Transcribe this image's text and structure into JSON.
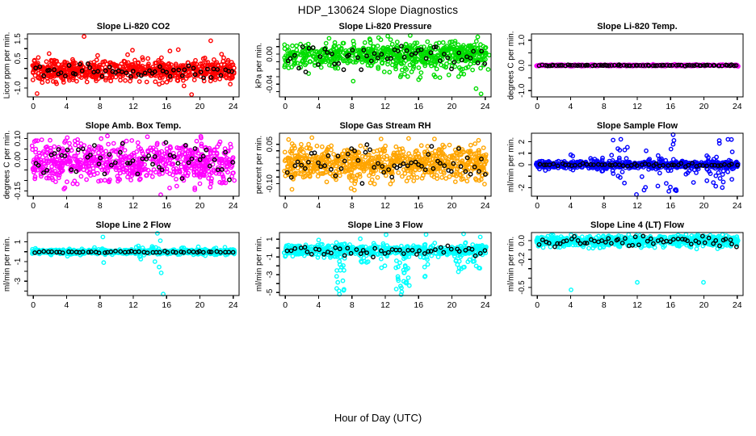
{
  "header": {
    "title": "HDP_130624  Slope Diagnostics"
  },
  "footer": {
    "xlabel": "Hour of Day (UTC)"
  },
  "marker": {
    "radius": 2.2,
    "stroke_width": 1.4,
    "overlay_color": "#000000"
  },
  "chart_data": [
    {
      "type": "scatter",
      "title": "Slope Li-820 CO2",
      "ylabel": "Licor ppm per min.",
      "color": "#FF0000",
      "seed": 11,
      "xlim": [
        -0.7,
        24.7
      ],
      "ylim": [
        -1.45,
        1.75
      ],
      "xticks": [
        0,
        4,
        8,
        12,
        16,
        20,
        24
      ],
      "yticks": [
        -1,
        -0.5,
        0,
        0.5,
        1,
        1.5
      ],
      "ytick_labels": {
        "1.5": "1.5",
        "0.5": "0.5",
        "-1": "-1.0"
      },
      "band": {
        "n": 680,
        "center": -0.12,
        "sd": 0.26,
        "ymin": -1.02,
        "ymax": 0.9
      },
      "clusters": [],
      "outliers": [
        [
          0.45,
          -1.28
        ],
        [
          6.1,
          1.62
        ],
        [
          19.0,
          -1.33
        ],
        [
          21.3,
          1.4
        ],
        [
          11.9,
          0.92
        ],
        [
          13.1,
          0.55
        ],
        [
          16.4,
          0.88
        ],
        [
          22.6,
          0.72
        ],
        [
          17.4,
          0.95
        ],
        [
          0.6,
          0.55
        ]
      ],
      "overlay": {
        "n": 55,
        "center": -0.12,
        "sd": 0.2,
        "ymin": -0.6,
        "ymax": 0.5
      }
    },
    {
      "type": "scatter",
      "title": "Slope Li-820 Pressure",
      "ylabel": "kPa per min.",
      "color": "#00DD00",
      "seed": 22,
      "xlim": [
        -0.7,
        24.7
      ],
      "ylim": [
        -0.057,
        0.027
      ],
      "xticks": [
        0,
        4,
        8,
        12,
        16,
        20,
        24
      ],
      "yticks": [
        0.02,
        0.01,
        0,
        -0.01,
        -0.02,
        -0.03,
        -0.04,
        -0.05
      ],
      "ytick_labels": {
        "0": "0.00",
        "-0.04": "-0.04"
      },
      "band": {
        "n": 620,
        "center": -0.001,
        "sd": 0.008,
        "ymin": -0.032,
        "ymax": 0.022
      },
      "clusters": [
        {
          "x": 18,
          "xs": 6.5,
          "n": 50,
          "ymin": -0.033,
          "ymax": 0.02
        }
      ],
      "outliers": [
        [
          23.5,
          -0.053
        ],
        [
          22.9,
          -0.046
        ],
        [
          8.15,
          -0.036
        ],
        [
          16.0,
          -0.034
        ],
        [
          20.8,
          -0.03
        ],
        [
          12.3,
          0.024
        ],
        [
          15.0,
          0.025
        ],
        [
          23.1,
          0.023
        ],
        [
          11.2,
          0.022
        ],
        [
          16.2,
          -0.031
        ],
        [
          13.9,
          -0.028
        ]
      ],
      "overlay": {
        "n": 55,
        "center": -0.002,
        "sd": 0.008,
        "ymin": -0.042,
        "ymax": 0.012
      }
    },
    {
      "type": "scatter",
      "title": "Slope Li-820 Temp.",
      "ylabel": "degrees C per min.",
      "color": "#FF00FF",
      "seed": 33,
      "xlim": [
        -0.7,
        24.7
      ],
      "ylim": [
        -1.25,
        1.25
      ],
      "xticks": [
        0,
        4,
        8,
        12,
        16,
        20,
        24
      ],
      "yticks": [
        -1,
        -0.5,
        0,
        0.5,
        1
      ],
      "ytick_labels": {
        "1": "1.0",
        "0": "0.0",
        "-1": "-1.0"
      },
      "band": {
        "n": 600,
        "center": 0,
        "sd": 0.013,
        "ymin": -0.05,
        "ymax": 0.05
      },
      "clusters": [],
      "outliers": [],
      "overlay": {
        "n": 85,
        "center": 0,
        "sd": 0.01,
        "ymin": -0.04,
        "ymax": 0.04
      }
    },
    {
      "type": "scatter",
      "title": "Slope Amb. Box Temp.",
      "ylabel": "degrees C per min.",
      "color": "#FF00FF",
      "seed": 44,
      "xlim": [
        -0.7,
        24.7
      ],
      "ylim": [
        -0.175,
        0.125
      ],
      "xticks": [
        0,
        4,
        8,
        12,
        16,
        20,
        24
      ],
      "yticks": [
        -0.15,
        -0.1,
        -0.05,
        0,
        0.05,
        0.1
      ],
      "ytick_labels": {
        "0.1": "0.10",
        "0": "0.00",
        "-0.15": "-0.15"
      },
      "band": {
        "n": 700,
        "center": -0.015,
        "sd": 0.048,
        "ymin": -0.155,
        "ymax": 0.105
      },
      "clusters": [],
      "outliers": [
        [
          15.3,
          -0.168
        ],
        [
          13.7,
          0.108
        ],
        [
          8.9,
          0.112
        ],
        [
          3.8,
          -0.135
        ],
        [
          20.1,
          0.11
        ],
        [
          0.3,
          0.09
        ]
      ],
      "overlay": {
        "n": 55,
        "center": -0.01,
        "sd": 0.045,
        "ymin": -0.12,
        "ymax": 0.09
      }
    },
    {
      "type": "scatter",
      "title": "Slope Gas Stream RH",
      "ylabel": "percent per min.",
      "color": "#FFA500",
      "seed": 55,
      "xlim": [
        -0.7,
        24.7
      ],
      "ylim": [
        -0.148,
        0.092
      ],
      "xticks": [
        0,
        4,
        8,
        12,
        16,
        20,
        24
      ],
      "yticks": [
        0.05,
        0.025,
        0,
        -0.025,
        -0.05,
        -0.075,
        -0.1
      ],
      "ytick_labels": {
        "0.05": "0.05",
        "-0.1": "-0.10"
      },
      "band": {
        "n": 720,
        "center": -0.022,
        "sd": 0.032,
        "ymin": -0.105,
        "ymax": 0.06
      },
      "clusters": [],
      "outliers": [
        [
          0.8,
          -0.122
        ],
        [
          7.9,
          -0.118
        ],
        [
          3.2,
          0.075
        ],
        [
          11.5,
          0.07
        ],
        [
          14.8,
          0.072
        ],
        [
          23.2,
          0.065
        ],
        [
          0.4,
          0.068
        ],
        [
          17.9,
          0.07
        ],
        [
          8.3,
          -0.125
        ]
      ],
      "overlay": {
        "n": 60,
        "center": -0.02,
        "sd": 0.034,
        "ymin": -0.1,
        "ymax": 0.055
      }
    },
    {
      "type": "scatter",
      "title": "Slope Sample Flow",
      "ylabel": "ml/min per min.",
      "color": "#0000FF",
      "seed": 66,
      "xlim": [
        -0.7,
        24.7
      ],
      "ylim": [
        -2.75,
        2.75
      ],
      "xticks": [
        0,
        4,
        8,
        12,
        16,
        20,
        24
      ],
      "yticks": [
        -2,
        -1,
        0,
        1,
        2
      ],
      "ytick_labels": {
        "2": "2",
        "1": "1",
        "0": "0",
        "-2": "-2"
      },
      "band": {
        "n": 620,
        "center": 0,
        "sd": 0.16,
        "ymin": -0.6,
        "ymax": 0.6
      },
      "clusters": [
        {
          "x": 9.9,
          "xs": 1.1,
          "n": 14,
          "ymin": -2.3,
          "ymax": 2.3
        },
        {
          "x": 16.1,
          "xs": 0.7,
          "n": 12,
          "ymin": -2.4,
          "ymax": 2.6
        },
        {
          "x": 21.9,
          "xs": 1.6,
          "n": 26,
          "ymin": -2.3,
          "ymax": 2.3
        },
        {
          "x": 13.5,
          "xs": 1.5,
          "n": 8,
          "ymin": -2.6,
          "ymax": 1.3
        },
        {
          "x": 18.7,
          "xs": 1.0,
          "n": 10,
          "ymin": -1.6,
          "ymax": 2.1
        },
        {
          "x": 6.5,
          "xs": 3.0,
          "n": 12,
          "ymin": -0.9,
          "ymax": 0.9
        }
      ],
      "outliers": [
        [
          16.3,
          2.62
        ],
        [
          11.9,
          -2.6
        ],
        [
          23.3,
          2.2
        ],
        [
          9.1,
          2.15
        ]
      ],
      "overlay": {
        "n": 55,
        "center": -0.02,
        "sd": 0.07,
        "ymin": -0.3,
        "ymax": 0.25
      }
    },
    {
      "type": "scatter",
      "title": "Slope Line 2 Flow",
      "ylabel": "ml/min per min.",
      "color": "#00FFFF",
      "seed": 77,
      "xlim": [
        -0.7,
        24.7
      ],
      "ylim": [
        -4.45,
        1.95
      ],
      "xticks": [
        0,
        4,
        8,
        12,
        16,
        20,
        24
      ],
      "yticks": [
        1,
        0,
        -1,
        -2,
        -3,
        -4
      ],
      "ytick_labels": {
        "1": "1",
        "-1": "-1",
        "-3": "-3"
      },
      "band": {
        "n": 620,
        "center": -0.02,
        "sd": 0.1,
        "ymin": -0.5,
        "ymax": 0.55
      },
      "clusters": [
        {
          "x": 12,
          "xs": 12,
          "n": 70,
          "ymin": -0.35,
          "ymax": 0.45
        },
        {
          "x": 13.8,
          "xs": 1.5,
          "n": 18,
          "ymin": -0.6,
          "ymax": 0.6
        }
      ],
      "outliers": [
        [
          8.35,
          1.5
        ],
        [
          14.9,
          1.87
        ],
        [
          15.25,
          1.12
        ],
        [
          14.6,
          -1.0
        ],
        [
          15.1,
          -1.55
        ],
        [
          15.35,
          -2.15
        ],
        [
          15.6,
          -4.3
        ],
        [
          8.45,
          -1.1
        ],
        [
          12.9,
          -0.75
        ],
        [
          4.1,
          -0.45
        ],
        [
          19.8,
          0.5
        ],
        [
          23.0,
          0.45
        ]
      ],
      "overlay": {
        "n": 50,
        "center": -0.03,
        "sd": 0.05,
        "ymin": -0.25,
        "ymax": 0.2
      }
    },
    {
      "type": "scatter",
      "title": "Slope Line 3 Flow",
      "ylabel": "ml/min per min.",
      "color": "#00FFFF",
      "seed": 88,
      "xlim": [
        -0.7,
        24.7
      ],
      "ylim": [
        -5.35,
        1.75
      ],
      "xticks": [
        0,
        4,
        8,
        12,
        16,
        20,
        24
      ],
      "yticks": [
        1,
        0,
        -1,
        -2,
        -3,
        -4,
        -5
      ],
      "ytick_labels": {
        "1": "1",
        "-1": "-1",
        "-3": "-3",
        "-5": "-5"
      },
      "band": {
        "n": 520,
        "center": -0.25,
        "sd": 0.33,
        "ymin": -1.3,
        "ymax": 0.85
      },
      "clusters": [
        {
          "x": 6.6,
          "xs": 0.55,
          "n": 18,
          "ymin": -5.1,
          "ymax": -0.6
        },
        {
          "x": 14.1,
          "xs": 0.9,
          "n": 30,
          "ymin": -5.15,
          "ymax": -0.4
        },
        {
          "x": 16.6,
          "xs": 0.5,
          "n": 12,
          "ymin": -3.3,
          "ymax": -0.4
        },
        {
          "x": 21.9,
          "xs": 1.5,
          "n": 24,
          "ymin": -2.7,
          "ymax": -0.2
        },
        {
          "x": 11.9,
          "xs": 0.4,
          "n": 6,
          "ymin": -2.3,
          "ymax": -0.3
        },
        {
          "x": 9.3,
          "xs": 0.7,
          "n": 8,
          "ymin": -1.7,
          "ymax": 0.9
        }
      ],
      "outliers": [
        [
          12.1,
          1.5
        ],
        [
          16.9,
          1.52
        ],
        [
          21.4,
          1.6
        ],
        [
          23.4,
          1.25
        ],
        [
          9.0,
          1.05
        ],
        [
          4.0,
          0.9
        ],
        [
          6.5,
          -5.2
        ],
        [
          13.9,
          -5.25
        ]
      ],
      "overlay": {
        "n": 50,
        "center": -0.3,
        "sd": 0.28,
        "ymin": -1.1,
        "ymax": 0.55
      }
    },
    {
      "type": "scatter",
      "title": "Slope Line 4 (LT) Flow",
      "ylabel": "ml/min per min.",
      "color": "#00FFFF",
      "seed": 99,
      "xlim": [
        -0.7,
        24.7
      ],
      "ylim": [
        -0.585,
        0.085
      ],
      "xticks": [
        0,
        4,
        8,
        12,
        16,
        20,
        24
      ],
      "yticks": [
        0,
        -0.1,
        -0.2,
        -0.3,
        -0.4,
        -0.5
      ],
      "ytick_labels": {
        "0": "0.0",
        "-0.2": "-0.2",
        "-0.5": "-0.5"
      },
      "band": {
        "n": 650,
        "center": -0.005,
        "sd": 0.032,
        "ymin": -0.09,
        "ymax": 0.065
      },
      "clusters": [],
      "outliers": [
        [
          4.05,
          -0.525
        ],
        [
          12.0,
          -0.445
        ],
        [
          19.95,
          -0.445
        ]
      ],
      "overlay": {
        "n": 58,
        "center": -0.005,
        "sd": 0.028,
        "ymin": -0.07,
        "ymax": 0.05
      }
    }
  ]
}
